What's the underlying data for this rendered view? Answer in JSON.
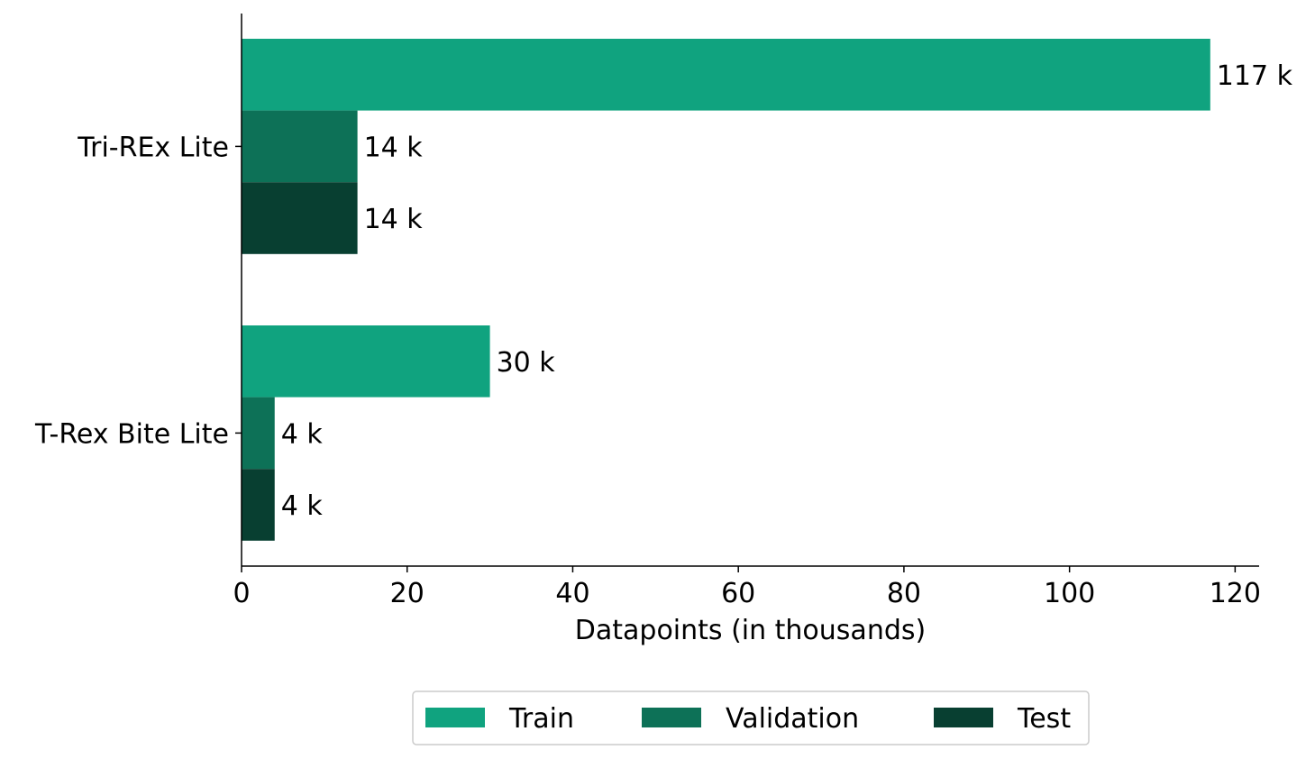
{
  "chart_data": {
    "type": "bar",
    "orientation": "horizontal",
    "title": "",
    "xlabel": "Datapoints (in thousands)",
    "ylabel": "",
    "xlim": [
      0,
      122.9
    ],
    "xticks": [
      0,
      20,
      40,
      60,
      80,
      100,
      120
    ],
    "xtick_labels": [
      "0",
      "20",
      "40",
      "60",
      "80",
      "100",
      "120"
    ],
    "categories": [
      "Tri-REx Lite",
      "T-Rex Bite Lite"
    ],
    "series": [
      {
        "name": "Train",
        "color": "#10a37f",
        "values": [
          117,
          30
        ],
        "labels": [
          "117 k",
          "30 k"
        ]
      },
      {
        "name": "Validation",
        "color": "#0d7157",
        "values": [
          14,
          4
        ],
        "labels": [
          "14 k",
          "4 k"
        ]
      },
      {
        "name": "Test",
        "color": "#083f31",
        "values": [
          14,
          4
        ],
        "labels": [
          "14 k",
          "4 k"
        ]
      }
    ],
    "grid": false,
    "legend_position": "bottom-center"
  }
}
